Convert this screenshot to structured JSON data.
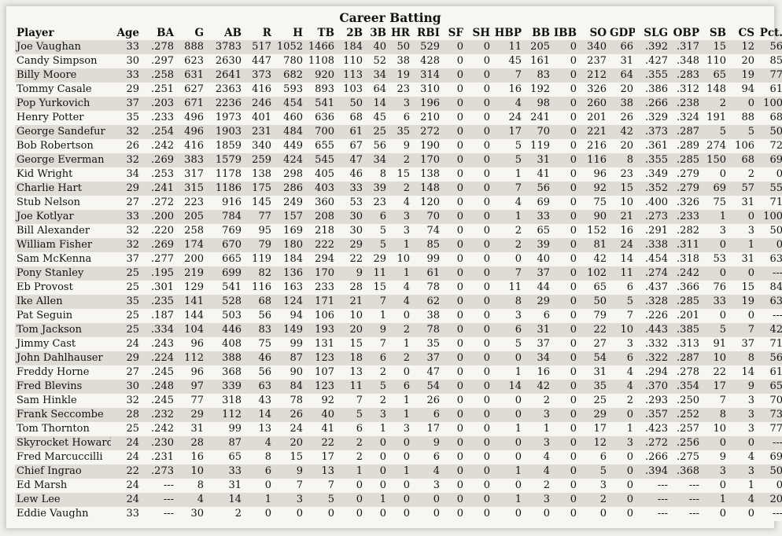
{
  "title": "Career Batting",
  "columns": [
    "Player",
    "Age",
    "BA",
    "G",
    "AB",
    "R",
    "H",
    "TB",
    "2B",
    "3B",
    "HR",
    "RBI",
    "SF",
    "SH",
    "HBP",
    "BB",
    "IBB",
    "SO",
    "GDP",
    "SLG",
    "OBP",
    "SB",
    "CS",
    "Pct."
  ],
  "rows": [
    [
      "Joe Vaughan",
      "33",
      ".278",
      "888",
      "3783",
      "517",
      "1052",
      "1466",
      "184",
      "40",
      "50",
      "529",
      "0",
      "0",
      "11",
      "205",
      "0",
      "340",
      "66",
      ".392",
      ".317",
      "15",
      "12",
      "56"
    ],
    [
      "Candy Simpson",
      "30",
      ".297",
      "623",
      "2630",
      "447",
      "780",
      "1108",
      "110",
      "52",
      "38",
      "428",
      "0",
      "0",
      "45",
      "161",
      "0",
      "237",
      "31",
      ".427",
      ".348",
      "110",
      "20",
      "85"
    ],
    [
      "Billy Moore",
      "33",
      ".258",
      "631",
      "2641",
      "373",
      "682",
      "920",
      "113",
      "34",
      "19",
      "314",
      "0",
      "0",
      "7",
      "83",
      "0",
      "212",
      "64",
      ".355",
      ".283",
      "65",
      "19",
      "77"
    ],
    [
      "Tommy Casale",
      "29",
      ".251",
      "627",
      "2363",
      "416",
      "593",
      "893",
      "103",
      "64",
      "23",
      "310",
      "0",
      "0",
      "16",
      "192",
      "0",
      "326",
      "20",
      ".386",
      ".312",
      "148",
      "94",
      "61"
    ],
    [
      "Pop Yurkovich",
      "37",
      ".203",
      "671",
      "2236",
      "246",
      "454",
      "541",
      "50",
      "14",
      "3",
      "196",
      "0",
      "0",
      "4",
      "98",
      "0",
      "260",
      "38",
      ".266",
      ".238",
      "2",
      "0",
      "100"
    ],
    [
      "Henry Potter",
      "35",
      ".233",
      "496",
      "1973",
      "401",
      "460",
      "636",
      "68",
      "45",
      "6",
      "210",
      "0",
      "0",
      "24",
      "241",
      "0",
      "201",
      "26",
      ".329",
      ".324",
      "191",
      "88",
      "68"
    ],
    [
      "George Sandefur",
      "32",
      ".254",
      "496",
      "1903",
      "231",
      "484",
      "700",
      "61",
      "25",
      "35",
      "272",
      "0",
      "0",
      "17",
      "70",
      "0",
      "221",
      "42",
      ".373",
      ".287",
      "5",
      "5",
      "50"
    ],
    [
      "Bob Robertson",
      "26",
      ".242",
      "416",
      "1859",
      "340",
      "449",
      "655",
      "67",
      "56",
      "9",
      "190",
      "0",
      "0",
      "5",
      "119",
      "0",
      "216",
      "20",
      ".361",
      ".289",
      "274",
      "106",
      "72"
    ],
    [
      "George Everman",
      "32",
      ".269",
      "383",
      "1579",
      "259",
      "424",
      "545",
      "47",
      "34",
      "2",
      "170",
      "0",
      "0",
      "5",
      "31",
      "0",
      "116",
      "8",
      ".355",
      ".285",
      "150",
      "68",
      "69"
    ],
    [
      "Kid Wright",
      "34",
      ".253",
      "317",
      "1178",
      "138",
      "298",
      "405",
      "46",
      "8",
      "15",
      "138",
      "0",
      "0",
      "1",
      "41",
      "0",
      "96",
      "23",
      ".349",
      ".279",
      "0",
      "2",
      "0"
    ],
    [
      "Charlie Hart",
      "29",
      ".241",
      "315",
      "1186",
      "175",
      "286",
      "403",
      "33",
      "39",
      "2",
      "148",
      "0",
      "0",
      "7",
      "56",
      "0",
      "92",
      "15",
      ".352",
      ".279",
      "69",
      "57",
      "55"
    ],
    [
      "Stub Nelson",
      "27",
      ".272",
      "223",
      "916",
      "145",
      "249",
      "360",
      "53",
      "23",
      "4",
      "120",
      "0",
      "0",
      "4",
      "69",
      "0",
      "75",
      "10",
      ".400",
      ".326",
      "75",
      "31",
      "71"
    ],
    [
      "Joe Kotlyar",
      "33",
      ".200",
      "205",
      "784",
      "77",
      "157",
      "208",
      "30",
      "6",
      "3",
      "70",
      "0",
      "0",
      "1",
      "33",
      "0",
      "90",
      "21",
      ".273",
      ".233",
      "1",
      "0",
      "100"
    ],
    [
      "Bill Alexander",
      "32",
      ".220",
      "258",
      "769",
      "95",
      "169",
      "218",
      "30",
      "5",
      "3",
      "74",
      "0",
      "0",
      "2",
      "65",
      "0",
      "152",
      "16",
      ".291",
      ".282",
      "3",
      "3",
      "50"
    ],
    [
      "William Fisher",
      "32",
      ".269",
      "174",
      "670",
      "79",
      "180",
      "222",
      "29",
      "5",
      "1",
      "85",
      "0",
      "0",
      "2",
      "39",
      "0",
      "81",
      "24",
      ".338",
      ".311",
      "0",
      "1",
      "0"
    ],
    [
      "Sam McKenna",
      "37",
      ".277",
      "200",
      "665",
      "119",
      "184",
      "294",
      "22",
      "29",
      "10",
      "99",
      "0",
      "0",
      "0",
      "40",
      "0",
      "42",
      "14",
      ".454",
      ".318",
      "53",
      "31",
      "63"
    ],
    [
      "Pony Stanley",
      "25",
      ".195",
      "219",
      "699",
      "82",
      "136",
      "170",
      "9",
      "11",
      "1",
      "61",
      "0",
      "0",
      "7",
      "37",
      "0",
      "102",
      "11",
      ".274",
      ".242",
      "0",
      "0",
      "---"
    ],
    [
      "Eb Provost",
      "25",
      ".301",
      "129",
      "541",
      "116",
      "163",
      "233",
      "28",
      "15",
      "4",
      "78",
      "0",
      "0",
      "11",
      "44",
      "0",
      "65",
      "6",
      ".437",
      ".366",
      "76",
      "15",
      "84"
    ],
    [
      "Ike Allen",
      "35",
      ".235",
      "141",
      "528",
      "68",
      "124",
      "171",
      "21",
      "7",
      "4",
      "62",
      "0",
      "0",
      "8",
      "29",
      "0",
      "50",
      "5",
      ".328",
      ".285",
      "33",
      "19",
      "63"
    ],
    [
      "Pat Seguin",
      "25",
      ".187",
      "144",
      "503",
      "56",
      "94",
      "106",
      "10",
      "1",
      "0",
      "38",
      "0",
      "0",
      "3",
      "6",
      "0",
      "79",
      "7",
      ".226",
      ".201",
      "0",
      "0",
      "---"
    ],
    [
      "Tom Jackson",
      "25",
      ".334",
      "104",
      "446",
      "83",
      "149",
      "193",
      "20",
      "9",
      "2",
      "78",
      "0",
      "0",
      "6",
      "31",
      "0",
      "22",
      "10",
      ".443",
      ".385",
      "5",
      "7",
      "42"
    ],
    [
      "Jimmy Cast",
      "24",
      ".243",
      "96",
      "408",
      "75",
      "99",
      "131",
      "15",
      "7",
      "1",
      "35",
      "0",
      "0",
      "5",
      "37",
      "0",
      "27",
      "3",
      ".332",
      ".313",
      "91",
      "37",
      "71"
    ],
    [
      "John Dahlhauser",
      "29",
      ".224",
      "112",
      "388",
      "46",
      "87",
      "123",
      "18",
      "6",
      "2",
      "37",
      "0",
      "0",
      "0",
      "34",
      "0",
      "54",
      "6",
      ".322",
      ".287",
      "10",
      "8",
      "56"
    ],
    [
      "Freddy Horne",
      "27",
      ".245",
      "96",
      "368",
      "56",
      "90",
      "107",
      "13",
      "2",
      "0",
      "47",
      "0",
      "0",
      "1",
      "16",
      "0",
      "31",
      "4",
      ".294",
      ".278",
      "22",
      "14",
      "61"
    ],
    [
      "Fred Blevins",
      "30",
      ".248",
      "97",
      "339",
      "63",
      "84",
      "123",
      "11",
      "5",
      "6",
      "54",
      "0",
      "0",
      "14",
      "42",
      "0",
      "35",
      "4",
      ".370",
      ".354",
      "17",
      "9",
      "65"
    ],
    [
      "Sam Hinkle",
      "32",
      ".245",
      "77",
      "318",
      "43",
      "78",
      "92",
      "7",
      "2",
      "1",
      "26",
      "0",
      "0",
      "0",
      "2",
      "0",
      "25",
      "2",
      ".293",
      ".250",
      "7",
      "3",
      "70"
    ],
    [
      "Frank Seccombe",
      "28",
      ".232",
      "29",
      "112",
      "14",
      "26",
      "40",
      "5",
      "3",
      "1",
      "6",
      "0",
      "0",
      "0",
      "3",
      "0",
      "29",
      "0",
      ".357",
      ".252",
      "8",
      "3",
      "73"
    ],
    [
      "Tom Thornton",
      "25",
      ".242",
      "31",
      "99",
      "13",
      "24",
      "41",
      "6",
      "1",
      "3",
      "17",
      "0",
      "0",
      "1",
      "1",
      "0",
      "17",
      "1",
      ".423",
      ".257",
      "10",
      "3",
      "77"
    ],
    [
      "Skyrocket Howard",
      "24",
      ".230",
      "28",
      "87",
      "4",
      "20",
      "22",
      "2",
      "0",
      "0",
      "9",
      "0",
      "0",
      "0",
      "3",
      "0",
      "12",
      "3",
      ".272",
      ".256",
      "0",
      "0",
      "---"
    ],
    [
      "Fred Marcuccilli",
      "24",
      ".231",
      "16",
      "65",
      "8",
      "15",
      "17",
      "2",
      "0",
      "0",
      "6",
      "0",
      "0",
      "0",
      "4",
      "0",
      "6",
      "0",
      ".266",
      ".275",
      "9",
      "4",
      "69"
    ],
    [
      "Chief Ingrao",
      "22",
      ".273",
      "10",
      "33",
      "6",
      "9",
      "13",
      "1",
      "0",
      "1",
      "4",
      "0",
      "0",
      "1",
      "4",
      "0",
      "5",
      "0",
      ".394",
      ".368",
      "3",
      "3",
      "50"
    ],
    [
      "Ed Marsh",
      "24",
      "---",
      "8",
      "31",
      "0",
      "7",
      "7",
      "0",
      "0",
      "0",
      "3",
      "0",
      "0",
      "0",
      "2",
      "0",
      "3",
      "0",
      "---",
      "---",
      "0",
      "1",
      "0"
    ],
    [
      "Lew Lee",
      "24",
      "---",
      "4",
      "14",
      "1",
      "3",
      "5",
      "0",
      "1",
      "0",
      "0",
      "0",
      "0",
      "1",
      "3",
      "0",
      "2",
      "0",
      "---",
      "---",
      "1",
      "4",
      "20"
    ],
    [
      "Eddie Vaughn",
      "33",
      "---",
      "30",
      "2",
      "0",
      "0",
      "0",
      "0",
      "0",
      "0",
      "0",
      "0",
      "0",
      "0",
      "0",
      "0",
      "0",
      "0",
      "---",
      "---",
      "0",
      "0",
      "---"
    ]
  ]
}
